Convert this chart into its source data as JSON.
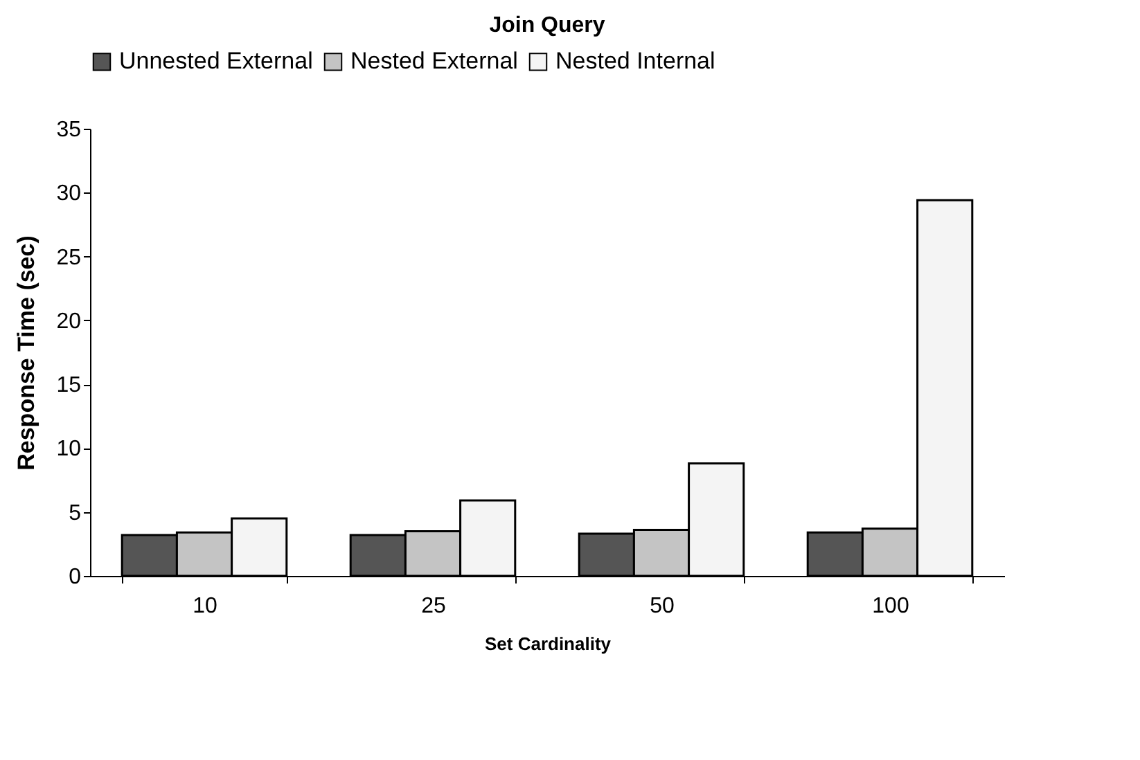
{
  "chart_data": {
    "type": "bar",
    "title": "Join Query",
    "xlabel": "Set Cardinality",
    "ylabel": "Response Time (sec)",
    "categories": [
      "10",
      "25",
      "50",
      "100"
    ],
    "series": [
      {
        "name": "Unnested External",
        "color": "#555555",
        "values": [
          3.2,
          3.2,
          3.3,
          3.4
        ]
      },
      {
        "name": "Nested External",
        "color": "#c4c4c4",
        "values": [
          3.4,
          3.5,
          3.6,
          3.7
        ]
      },
      {
        "name": "Nested Internal",
        "color": "#f4f4f4",
        "values": [
          4.5,
          5.9,
          8.8,
          29.4
        ]
      }
    ],
    "ylim": [
      0,
      35
    ],
    "yticks": [
      0,
      5,
      10,
      15,
      20,
      25,
      30,
      35
    ],
    "grid": false,
    "legend": "top"
  }
}
